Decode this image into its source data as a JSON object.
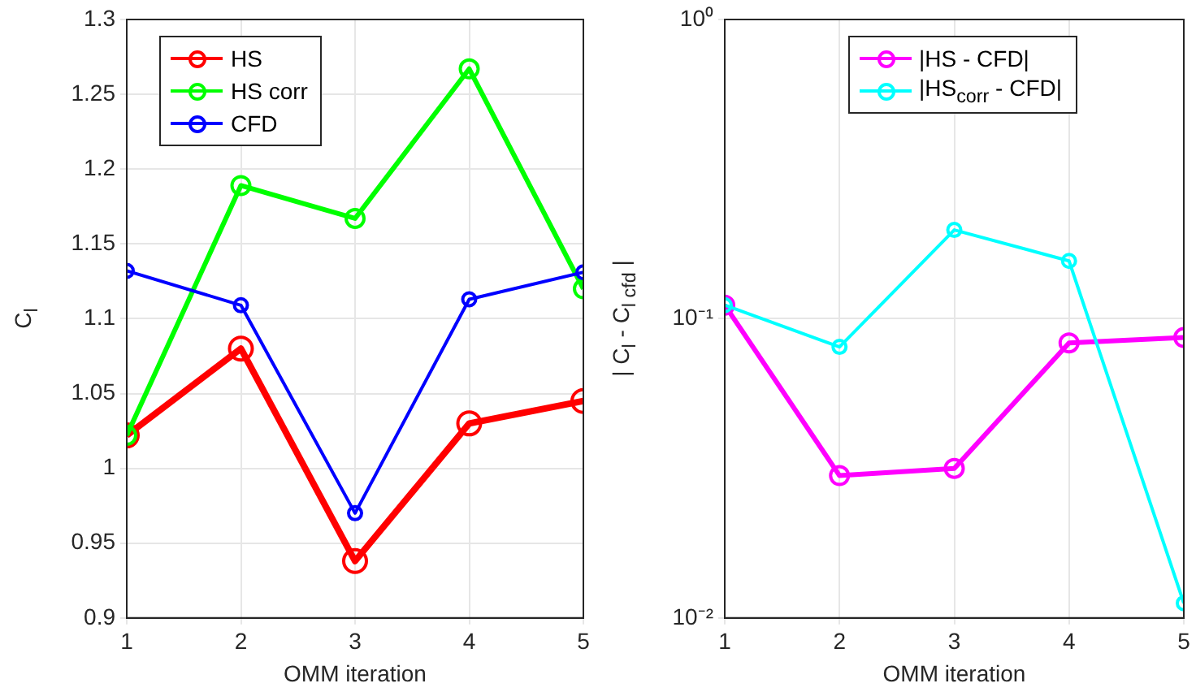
{
  "chart_data": [
    {
      "type": "line",
      "xlabel": "OMM iteration",
      "ylabel": "C$_{l}$",
      "x": [
        1,
        2,
        3,
        4,
        5
      ],
      "series": [
        {
          "name": "HS",
          "color": "#ff0000",
          "values": [
            1.022,
            1.08,
            0.938,
            1.03,
            1.045
          ]
        },
        {
          "name": "HS corr",
          "color": "#00ff00",
          "values": [
            1.022,
            1.189,
            1.167,
            1.267,
            1.12
          ]
        },
        {
          "name": "CFD",
          "color": "#0000ff",
          "values": [
            1.132,
            1.109,
            0.97,
            1.113,
            1.131
          ]
        }
      ],
      "xlim": [
        1,
        5
      ],
      "xticks": [
        1,
        2,
        3,
        4,
        5
      ],
      "ylim": [
        0.9,
        1.3
      ],
      "yticks": [
        0.9,
        0.95,
        1,
        1.05,
        1.1,
        1.15,
        1.2,
        1.25,
        1.3
      ],
      "grid": true,
      "legend": "top left",
      "marker": "circle",
      "line_style": "solid"
    },
    {
      "type": "line",
      "xlabel": "OMM iteration",
      "ylabel": "| C$_{l}$ - C$_{l cfd}$ |",
      "x": [
        1,
        2,
        3,
        4,
        5
      ],
      "series": [
        {
          "name": "|HS - CFD|",
          "color": "#ff00ff",
          "values": [
            0.111,
            0.0299,
            0.0316,
            0.083,
            0.0865
          ]
        },
        {
          "name": "|HS$_{corr}$ - CFD|",
          "color": "#00ffff",
          "values": [
            0.111,
            0.0805,
            0.198,
            0.156,
            0.0112
          ]
        }
      ],
      "xlim": [
        1,
        5
      ],
      "xticks": [
        1,
        2,
        3,
        4,
        5
      ],
      "ylim": [
        0.01,
        1
      ],
      "yticks": [
        {
          "value": 0.01,
          "label": "10⁻²"
        },
        {
          "value": 0.1,
          "label": "10⁻¹"
        },
        {
          "value": 1,
          "label": "10⁰"
        }
      ],
      "log": "y",
      "grid": true,
      "legend": "top right",
      "marker": "circle",
      "line_style": "solid"
    }
  ]
}
